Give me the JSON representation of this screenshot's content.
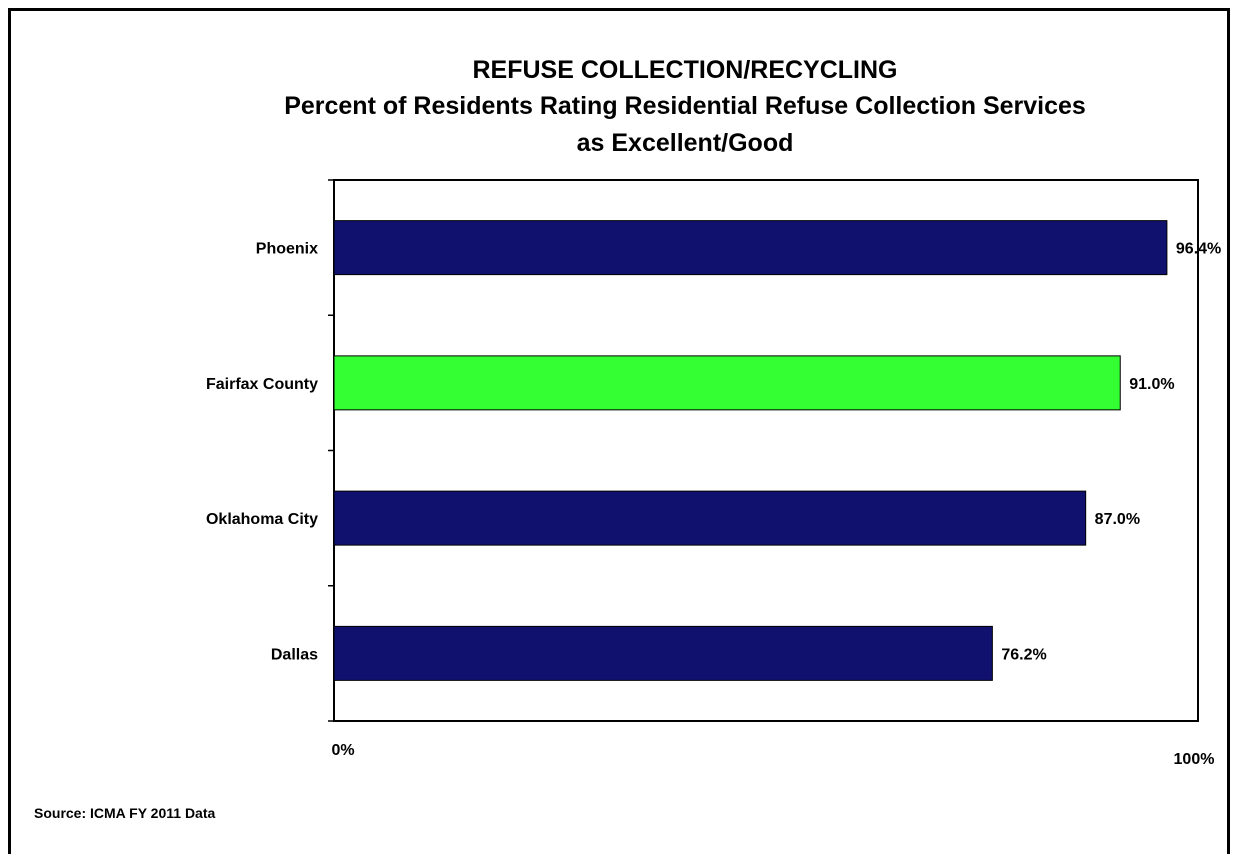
{
  "chart_data": {
    "type": "bar",
    "orientation": "horizontal",
    "title": "REFUSE COLLECTION/RECYCLING",
    "subtitle_lines": [
      "Percent of Residents Rating Residential Refuse Collection Services",
      "as Excellent/Good"
    ],
    "categories": [
      "Phoenix",
      "Fairfax County",
      "Oklahoma City",
      "Dallas"
    ],
    "values": [
      96.4,
      91.0,
      87.0,
      76.2
    ],
    "value_labels": [
      "96.4%",
      "91.0%",
      "87.0%",
      "76.2%"
    ],
    "bar_colors": [
      "#10106e",
      "#33ff33",
      "#10106e",
      "#10106e"
    ],
    "xlim": [
      0,
      100
    ],
    "x_tick_labels": [
      "0%",
      "100%"
    ],
    "xlabel": "",
    "ylabel": "",
    "grid": false,
    "legend": "none"
  },
  "source_text": "Source: ICMA FY 2011 Data"
}
